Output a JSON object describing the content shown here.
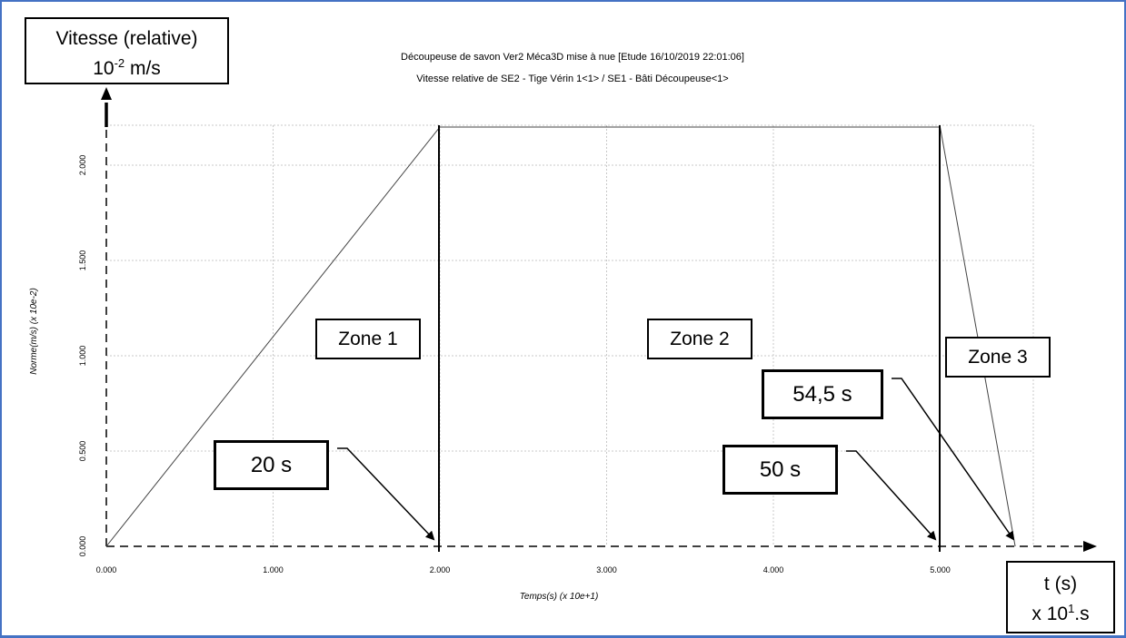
{
  "chart_data": {
    "type": "line",
    "title": "Découpeuse de savon Ver2 Méca3D mise à nue [Etude 16/10/2019 22:01:06]",
    "subtitle": "Vitesse relative de SE2 - Tige Vérin 1<1> / SE1 - Bâti Découpeuse<1>",
    "xlabel": "Temps(s)   (x 10e+1)",
    "ylabel": "Norme(m/s)   (x 10e-2)",
    "xlim": [
      0,
      5.45
    ],
    "ylim": [
      0,
      2.2
    ],
    "xticks": [
      "0.000",
      "1.000",
      "2.000",
      "3.000",
      "4.000",
      "5.000"
    ],
    "yticks": [
      "0.000",
      "0.500",
      "1.000",
      "1.500",
      "2.000"
    ],
    "grid": true,
    "series": [
      {
        "x": [
          0,
          2.0,
          5.0,
          5.45
        ],
        "y": [
          0,
          2.2,
          2.2,
          0
        ]
      }
    ]
  },
  "annotations": {
    "y_axis_box": {
      "line1": "Vitesse (relative)",
      "base": "10",
      "exp": "-2",
      "unit": " m/s"
    },
    "x_axis_box": {
      "line1": "t (s)",
      "prefix": "x 10",
      "exp": "1",
      "suffix": ".s"
    },
    "zones": [
      "Zone 1",
      "Zone 2",
      "Zone 3"
    ],
    "times": [
      "20 s",
      "50 s",
      "54,5 s"
    ]
  },
  "colors": {
    "frame": "#4472c4",
    "grid": "#c8c8c8",
    "curve": "#444444",
    "ink": "#000000"
  }
}
